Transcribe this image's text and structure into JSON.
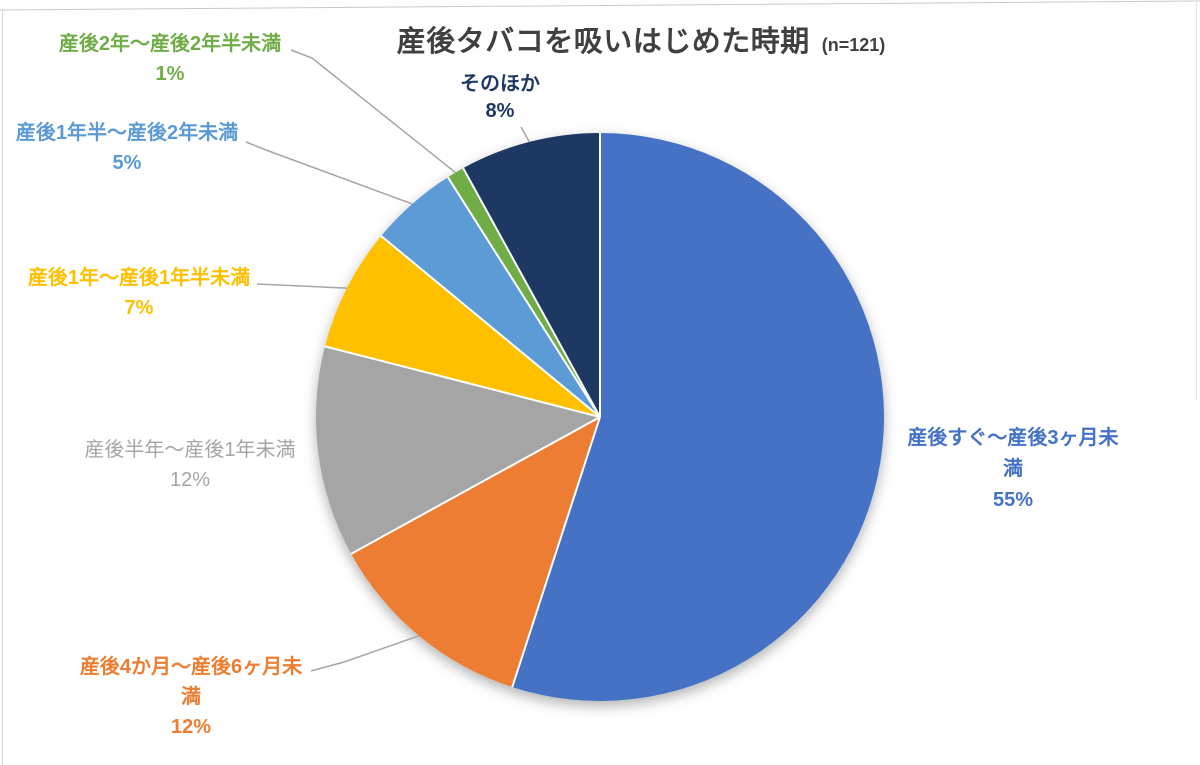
{
  "chart_data": {
    "type": "pie",
    "title": "産後タバコを吸いはじめた時期",
    "sample_size_label": "(n=121)",
    "n": 121,
    "unit": "%",
    "start_angle_deg": 0,
    "direction": "clockwise",
    "legend": "none",
    "slices": [
      {
        "name": "産後すぐ〜産後3ヶ月未満",
        "value": 55,
        "pct": "55%",
        "color": "#4472C4",
        "label_lines": [
          "産後すぐ〜産後3ヶ月未",
          "満",
          "55%"
        ]
      },
      {
        "name": "産後4か月〜産後6ヶ月未満",
        "value": 12,
        "pct": "12%",
        "color": "#ED7D31",
        "label_lines": [
          "産後4か月〜産後6ヶ月未",
          "満",
          "12%"
        ]
      },
      {
        "name": "産後半年〜産後1年未満",
        "value": 12,
        "pct": "12%",
        "color": "#A5A5A5",
        "label_lines": [
          "産後半年〜産後1年未満",
          "12%"
        ]
      },
      {
        "name": "産後1年〜産後1年半未満",
        "value": 7,
        "pct": "7%",
        "color": "#FFC000",
        "label_lines": [
          "産後1年〜産後1年半未満",
          "7%"
        ]
      },
      {
        "name": "産後1年半〜産後2年未満",
        "value": 5,
        "pct": "5%",
        "color": "#5B9BD5",
        "label_lines": [
          "産後1年半〜産後2年未満",
          "5%"
        ]
      },
      {
        "name": "産後2年〜産後2年半未満",
        "value": 1,
        "pct": "1%",
        "color": "#70AD47",
        "label_lines": [
          "産後2年〜産後2年半未満",
          "1%"
        ]
      },
      {
        "name": "そのほか",
        "value": 8,
        "pct": "8%",
        "color": "#1F3864",
        "label_lines": [
          "そのほか",
          "8%"
        ]
      }
    ],
    "leader_line_color": "#A6A6A6"
  }
}
